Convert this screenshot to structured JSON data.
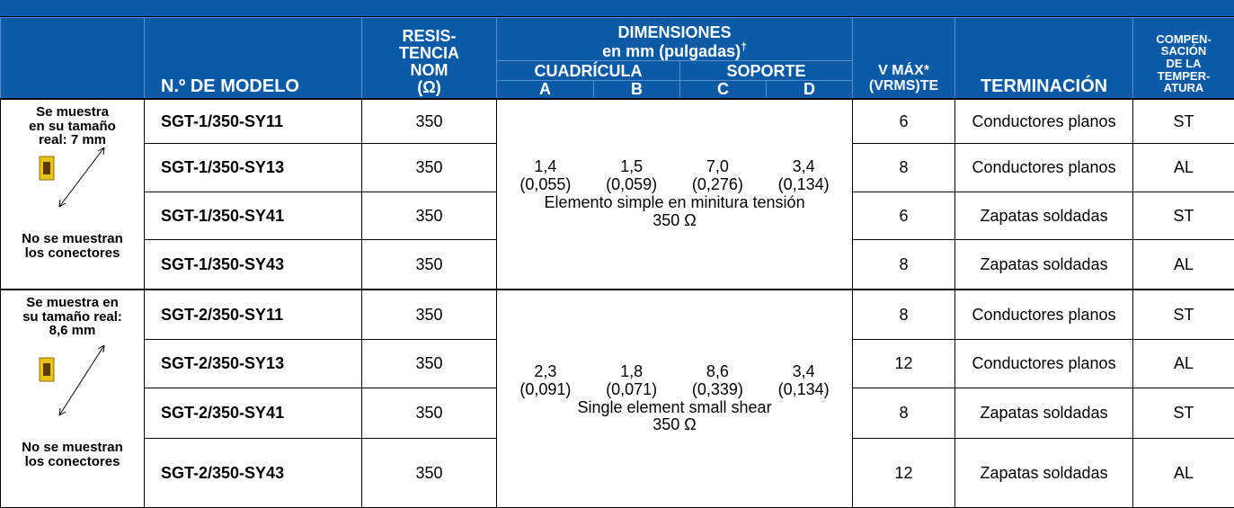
{
  "header": {
    "model": "N.º DE MODELO",
    "resistance": [
      "RESIS-",
      "TENCIA",
      "NOM",
      "(Ω)"
    ],
    "dimensions_title": "DIMENSIONES",
    "dimensions_sub": "en mm (pulgadas)",
    "dagger": "†",
    "grid": "CUADRÍCULA",
    "backing": "SOPORTE",
    "a": "A",
    "b": "B",
    "c": "C",
    "d": "D",
    "vmax": [
      "V MÁX*",
      "(VRMS)TE"
    ],
    "termination": "TERMINACIÓN",
    "compensation": [
      "COMPEN-",
      "SACIÓN",
      "DE LA",
      "TEMPER-",
      "ATURA"
    ]
  },
  "groups": [
    {
      "note_top": [
        "Se muestra",
        "en su tamaño",
        "real: 7 mm"
      ],
      "note_bottom": [
        "No se muestran",
        "los conectores"
      ],
      "dims": [
        [
          "1,4",
          "(0,055)"
        ],
        [
          "1,5",
          "(0,059)"
        ],
        [
          "7,0",
          "(0,276)"
        ],
        [
          "3,4",
          "(0,134)"
        ]
      ],
      "description": "Elemento simple en minitura tensión",
      "resistance_symbol": "350 Ω",
      "rows": [
        {
          "model": "SGT-1/350-SY11",
          "resistance": 350,
          "vmax": 6,
          "termination": "Conductores planos",
          "compensation": "ST"
        },
        {
          "model": "SGT-1/350-SY13",
          "resistance": 350,
          "vmax": 8,
          "termination": "Conductores planos",
          "compensation": "AL"
        },
        {
          "model": "SGT-1/350-SY41",
          "resistance": 350,
          "vmax": 6,
          "termination": "Zapatas soldadas",
          "compensation": "ST"
        },
        {
          "model": "SGT-1/350-SY43",
          "resistance": 350,
          "vmax": 8,
          "termination": "Zapatas soldadas",
          "compensation": "AL"
        }
      ]
    },
    {
      "note_top": [
        "Se muestra en",
        "su tamaño real:",
        "8,6 mm"
      ],
      "note_bottom": [
        "No se muestran",
        "los conectores"
      ],
      "dims": [
        [
          "2,3",
          "(0,091)"
        ],
        [
          "1,8",
          "(0,071)"
        ],
        [
          "8,6",
          "(0,339)"
        ],
        [
          "3,4",
          "(0,134)"
        ]
      ],
      "description": "Single element small shear",
      "resistance_symbol": "350 Ω",
      "rows": [
        {
          "model": "SGT-2/350-SY11",
          "resistance": 350,
          "vmax": 8,
          "termination": "Conductores planos",
          "compensation": "ST"
        },
        {
          "model": "SGT-2/350-SY13",
          "resistance": 350,
          "vmax": 12,
          "termination": "Conductores planos",
          "compensation": "AL"
        },
        {
          "model": "SGT-2/350-SY41",
          "resistance": 350,
          "vmax": 8,
          "termination": "Zapatas soldadas",
          "compensation": "ST"
        },
        {
          "model": "SGT-2/350-SY43",
          "resistance": 350,
          "vmax": 12,
          "termination": "Zapatas soldadas",
          "compensation": "AL"
        }
      ]
    }
  ]
}
